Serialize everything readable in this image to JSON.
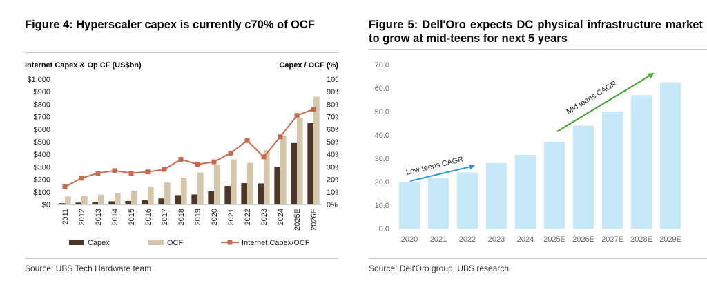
{
  "left": {
    "title": "Figure 4: Hyperscaler capex is currently c70% of OCF",
    "source": "Source: UBS Tech Hardware team",
    "chart_data": {
      "type": "bar",
      "categories": [
        "2011",
        "2012",
        "2013",
        "2014",
        "2015",
        "2016",
        "2017",
        "2018",
        "2019",
        "2020",
        "2021",
        "2022",
        "2023",
        "2024",
        "2025E",
        "2026E"
      ],
      "series": [
        {
          "name": "Capex",
          "type": "bar",
          "axis": "left",
          "color": "#4a3728",
          "values": [
            10,
            15,
            22,
            25,
            28,
            35,
            48,
            75,
            80,
            105,
            148,
            170,
            168,
            300,
            490,
            650
          ]
        },
        {
          "name": "OCF",
          "type": "bar",
          "axis": "left",
          "color": "#d5c6a9",
          "values": [
            65,
            68,
            78,
            92,
            110,
            140,
            175,
            215,
            255,
            315,
            360,
            332,
            435,
            550,
            690,
            860
          ]
        },
        {
          "name": "Internet Capex/OCF",
          "type": "line",
          "axis": "right",
          "color": "#c56a4e",
          "values": [
            14,
            21,
            25,
            27,
            25,
            26,
            28,
            36,
            32,
            34,
            41,
            51,
            38,
            54,
            71,
            76
          ]
        }
      ],
      "y_left_label": "Internet Capex & Op CF (US$bn)",
      "y_right_label": "Capex / OCF (%)",
      "y_left_ticks": [
        "$1,000",
        "$900",
        "$800",
        "$700",
        "$600",
        "$500",
        "$400",
        "$300",
        "$200",
        "$100",
        "$0"
      ],
      "y_right_ticks": [
        "100%",
        "90%",
        "80%",
        "70%",
        "60%",
        "50%",
        "40%",
        "30%",
        "20%",
        "10%",
        "0%"
      ],
      "ylim_left": [
        0,
        1000
      ],
      "ylim_right": [
        0,
        100
      ],
      "legend": [
        "Capex",
        "OCF",
        "Internet Capex/OCF"
      ]
    }
  },
  "right": {
    "title": "Figure 5: Dell'Oro expects DC physical infrastructure market to grow at mid-teens for next 5 years",
    "source": "Source: Dell'Oro group, UBS research",
    "chart_data": {
      "type": "bar",
      "categories": [
        "2020",
        "2021",
        "2022",
        "2023",
        "2024",
        "2025E",
        "2026E",
        "2027E",
        "2028E",
        "2029E"
      ],
      "values": [
        20.0,
        21.5,
        24.0,
        28.0,
        31.5,
        37.0,
        44.0,
        50.0,
        57.0,
        62.5
      ],
      "bar_color": "#c6e8f8",
      "y_ticks": [
        "70.0",
        "60.0",
        "50.0",
        "40.0",
        "30.0",
        "20.0",
        "10.0",
        "0.0"
      ],
      "ylim": [
        0,
        70
      ],
      "annotations": [
        {
          "text": "Low teens CAGR",
          "color": "#2a9ad0"
        },
        {
          "text": "Mid teens CAGR",
          "color": "#4fa83a"
        }
      ]
    }
  }
}
